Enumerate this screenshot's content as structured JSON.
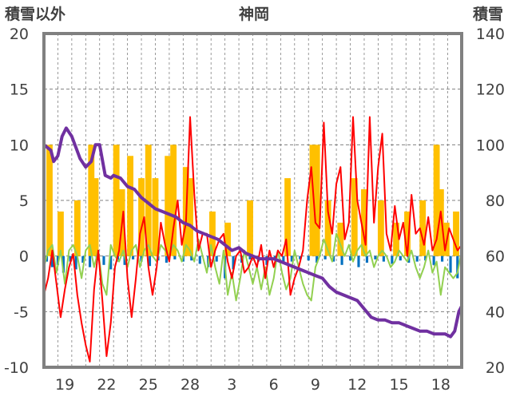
{
  "chart_data": {
    "type": "line",
    "title": "神岡",
    "ylabel_left": "積雪以外",
    "ylabel_right": "積雪",
    "y_left_range": [
      -10,
      20
    ],
    "y_left_ticks": [
      "20",
      "15",
      "10",
      "5",
      "0",
      "-5",
      "-10"
    ],
    "y_right_range": [
      20,
      140
    ],
    "y_right_ticks": [
      "140",
      "120",
      "100",
      "80",
      "60",
      "40",
      "20"
    ],
    "x_range": [
      0,
      30
    ],
    "x_tick_labels": [
      "19",
      "22",
      "25",
      "28",
      "3",
      "6",
      "9",
      "12",
      "15",
      "18"
    ],
    "x_tick_positions": [
      1.5,
      4.5,
      7.5,
      10.5,
      13.5,
      16.5,
      19.5,
      22.5,
      25.5,
      28.5
    ],
    "grid": true,
    "colors": {
      "snow_depth": "#7030a0",
      "temperature_red": "#ff0000",
      "temperature_green": "#92d050",
      "precipitation": "#ffc000",
      "negative_bars": "#0070c0",
      "frame": "#808080",
      "grid": "#808080"
    },
    "snow_depth": {
      "x": [
        0.0,
        0.5,
        0.7,
        1.0,
        1.3,
        1.6,
        2.0,
        2.3,
        2.6,
        3.0,
        3.4,
        3.7,
        4.0,
        4.4,
        4.8,
        5.0,
        5.5,
        6.0,
        6.5,
        7.0,
        7.5,
        8.0,
        8.5,
        9.0,
        9.5,
        10.0,
        10.5,
        11.0,
        11.5,
        12.0,
        12.5,
        13.0,
        13.5,
        14.0,
        14.5,
        15.0,
        15.5,
        16.0,
        16.5,
        17.0,
        17.5,
        18.0,
        18.5,
        19.0,
        19.5,
        20.0,
        20.5,
        21.0,
        21.5,
        22.0,
        22.5,
        23.0,
        23.5,
        24.0,
        24.5,
        25.0,
        25.5,
        26.0,
        26.5,
        27.0,
        27.5,
        28.0,
        28.5,
        28.8,
        29.2,
        29.5,
        29.8,
        30.0
      ],
      "values": [
        100,
        98,
        94,
        96,
        103,
        106,
        103,
        99,
        95,
        92,
        94,
        100,
        100,
        89,
        88,
        89,
        88,
        85,
        84,
        81,
        79,
        77,
        76,
        75,
        74,
        72,
        71,
        69,
        68,
        67,
        66,
        64,
        62,
        63,
        61,
        60,
        59,
        59,
        59,
        58,
        57,
        56,
        55,
        54,
        53,
        52,
        49,
        47,
        46,
        45,
        44,
        41,
        38,
        37,
        37,
        36,
        36,
        35,
        34,
        33,
        33,
        32,
        32,
        32,
        31,
        33,
        40,
        42
      ]
    },
    "temperature_red": {
      "x": [
        0.0,
        0.3,
        0.6,
        0.9,
        1.2,
        1.5,
        1.8,
        2.1,
        2.4,
        2.7,
        3.0,
        3.3,
        3.6,
        3.9,
        4.2,
        4.5,
        4.8,
        5.1,
        5.4,
        5.7,
        6.0,
        6.3,
        6.6,
        6.9,
        7.2,
        7.5,
        7.8,
        8.1,
        8.4,
        8.7,
        9.0,
        9.3,
        9.6,
        9.9,
        10.2,
        10.5,
        10.8,
        11.1,
        11.4,
        11.7,
        12.0,
        12.3,
        12.6,
        12.9,
        13.2,
        13.5,
        13.8,
        14.1,
        14.4,
        14.7,
        15.0,
        15.3,
        15.6,
        15.9,
        16.2,
        16.5,
        16.8,
        17.1,
        17.4,
        17.7,
        18.0,
        18.3,
        18.6,
        18.9,
        19.2,
        19.5,
        19.8,
        20.1,
        20.4,
        20.7,
        21.0,
        21.3,
        21.6,
        21.9,
        22.2,
        22.5,
        22.8,
        23.1,
        23.4,
        23.7,
        24.0,
        24.3,
        24.6,
        24.9,
        25.2,
        25.5,
        25.8,
        26.1,
        26.4,
        26.7,
        27.0,
        27.3,
        27.6,
        27.9,
        28.2,
        28.5,
        28.8,
        29.1,
        29.4,
        29.7,
        30.0
      ],
      "values": [
        -3.5,
        -2.0,
        0.5,
        -2.5,
        -5.5,
        -3.0,
        -1.0,
        0.2,
        -3.5,
        -6.0,
        -8.0,
        -9.5,
        -3.0,
        0.5,
        -4.0,
        -9.0,
        -6.0,
        -1.0,
        0.5,
        4.0,
        -2.0,
        -5.5,
        -2.0,
        2.0,
        3.5,
        -1.0,
        -3.5,
        -1.0,
        3.0,
        1.0,
        -0.5,
        2.5,
        5.0,
        1.0,
        3.0,
        12.5,
        5.5,
        0.5,
        2.0,
        2.0,
        -1.0,
        0.5,
        1.5,
        2.0,
        -0.5,
        -2.0,
        0.0,
        0.5,
        -1.5,
        -1.0,
        0.0,
        -1.0,
        1.0,
        -2.0,
        0.5,
        -1.0,
        0.5,
        0.0,
        1.5,
        -3.5,
        -2.0,
        -1.0,
        0.5,
        5.0,
        8.0,
        3.0,
        2.5,
        12.0,
        4.0,
        2.0,
        6.5,
        8.0,
        1.5,
        3.0,
        12.5,
        5.0,
        3.0,
        1.0,
        12.5,
        3.0,
        8.0,
        11.0,
        2.0,
        0.5,
        4.5,
        1.5,
        3.0,
        0.0,
        5.5,
        2.0,
        2.5,
        1.0,
        3.5,
        0.5,
        1.5,
        4.0,
        0.5,
        2.5,
        1.5,
        0.5,
        1.0
      ]
    },
    "temperature_green": {
      "x": [
        0.0,
        0.3,
        0.6,
        0.9,
        1.2,
        1.5,
        1.8,
        2.1,
        2.4,
        2.7,
        3.0,
        3.3,
        3.6,
        3.9,
        4.2,
        4.5,
        4.8,
        5.1,
        5.4,
        5.7,
        6.0,
        6.3,
        6.6,
        6.9,
        7.2,
        7.5,
        7.8,
        8.1,
        8.4,
        8.7,
        9.0,
        9.3,
        9.6,
        9.9,
        10.2,
        10.5,
        10.8,
        11.1,
        11.4,
        11.7,
        12.0,
        12.3,
        12.6,
        12.9,
        13.2,
        13.5,
        13.8,
        14.1,
        14.4,
        14.7,
        15.0,
        15.3,
        15.6,
        15.9,
        16.2,
        16.5,
        16.8,
        17.1,
        17.4,
        17.7,
        18.0,
        18.3,
        18.6,
        18.9,
        19.2,
        19.5,
        19.8,
        20.1,
        20.4,
        20.7,
        21.0,
        21.3,
        21.6,
        21.9,
        22.2,
        22.5,
        22.8,
        23.1,
        23.4,
        23.7,
        24.0,
        24.3,
        24.6,
        24.9,
        25.2,
        25.5,
        25.8,
        26.1,
        26.4,
        26.7,
        27.0,
        27.3,
        27.6,
        27.9,
        28.2,
        28.5,
        28.8,
        29.1,
        29.4,
        29.7,
        30.0
      ],
      "values": [
        -1.0,
        0.5,
        1.0,
        -1.5,
        0.5,
        -2.5,
        0.5,
        1.0,
        0.0,
        -2.0,
        0.5,
        1.0,
        -1.0,
        0.5,
        -2.5,
        -3.5,
        1.0,
        0.0,
        -0.5,
        0.5,
        -1.0,
        0.5,
        1.0,
        -1.0,
        0.5,
        1.0,
        0.0,
        -0.5,
        1.0,
        0.5,
        0.0,
        1.0,
        0.5,
        -0.5,
        1.0,
        0.5,
        -0.5,
        1.5,
        0.0,
        -1.5,
        1.0,
        -1.0,
        -2.5,
        0.5,
        -3.5,
        -1.5,
        -4.0,
        -2.0,
        0.5,
        -1.0,
        -2.5,
        -1.0,
        -3.0,
        -1.0,
        -3.5,
        -2.0,
        0.5,
        -1.5,
        -3.0,
        -2.0,
        0.5,
        -1.0,
        -2.5,
        -3.5,
        -4.0,
        -1.0,
        0.0,
        1.5,
        0.5,
        -0.5,
        2.0,
        1.0,
        0.0,
        1.0,
        -0.5,
        0.5,
        1.0,
        0.0,
        0.5,
        -1.0,
        0.0,
        0.5,
        0.0,
        -1.0,
        -0.5,
        0.5,
        0.0,
        -0.5,
        0.5,
        -1.0,
        -2.0,
        -1.0,
        0.5,
        -1.5,
        -0.5,
        -3.5,
        -1.0,
        -1.5,
        -2.0,
        -1.5,
        0.5
      ]
    },
    "precipitation": {
      "x": [
        0.4,
        1.2,
        2.4,
        3.4,
        3.7,
        5.2,
        5.6,
        6.2,
        7.0,
        7.5,
        8.0,
        8.9,
        9.3,
        10.2,
        10.5,
        12.1,
        13.2,
        14.8,
        17.5,
        19.3,
        19.6,
        20.4,
        21.3,
        22.3,
        23.0,
        24.2,
        25.3,
        26.1,
        27.2,
        28.2,
        28.5,
        28.9,
        29.6
      ],
      "values": [
        10,
        4,
        5,
        10,
        7,
        10,
        6,
        9,
        7,
        10,
        7,
        9,
        10,
        8,
        7,
        4,
        3,
        5,
        7,
        10,
        10,
        5,
        3,
        7,
        6,
        5,
        3,
        4,
        5,
        10,
        6,
        3,
        4
      ]
    },
    "negative_bars": {
      "x": [
        0.2,
        0.6,
        1.0,
        1.4,
        1.9,
        2.3,
        2.8,
        3.3,
        3.8,
        4.3,
        4.8,
        5.3,
        5.8,
        6.4,
        7.0,
        7.6,
        8.2,
        8.8,
        9.4,
        10.0,
        10.6,
        11.2,
        11.8,
        12.4,
        13.0,
        13.6,
        14.2,
        14.8,
        15.4,
        16.0,
        16.6,
        17.2,
        17.8,
        18.4,
        19.0,
        19.6,
        20.2,
        20.8,
        21.4,
        22.0,
        22.6,
        23.2,
        23.8,
        24.4,
        25.0,
        25.6,
        26.2,
        26.8,
        27.4,
        28.0,
        28.6,
        29.2,
        29.7
      ],
      "values": [
        -0.5,
        -1.0,
        -0.8,
        -1.5,
        -0.5,
        -1.2,
        -0.6,
        -1.0,
        -0.4,
        -0.8,
        -1.2,
        -0.5,
        -0.8,
        -0.3,
        -0.5,
        -0.9,
        -0.4,
        -0.6,
        -0.3,
        -0.5,
        -0.4,
        -0.7,
        -1.0,
        -0.5,
        -2.0,
        -1.2,
        -0.6,
        -0.3,
        -0.5,
        -0.8,
        -0.4,
        -0.6,
        -0.5,
        -0.3,
        -0.4,
        -0.6,
        -0.3,
        -0.5,
        -0.8,
        -0.4,
        -1.0,
        -0.6,
        -0.3,
        -0.5,
        -0.7,
        -0.4,
        -0.6,
        -0.5,
        -0.4,
        -0.8,
        -0.5,
        -1.5,
        -2.0
      ]
    }
  }
}
